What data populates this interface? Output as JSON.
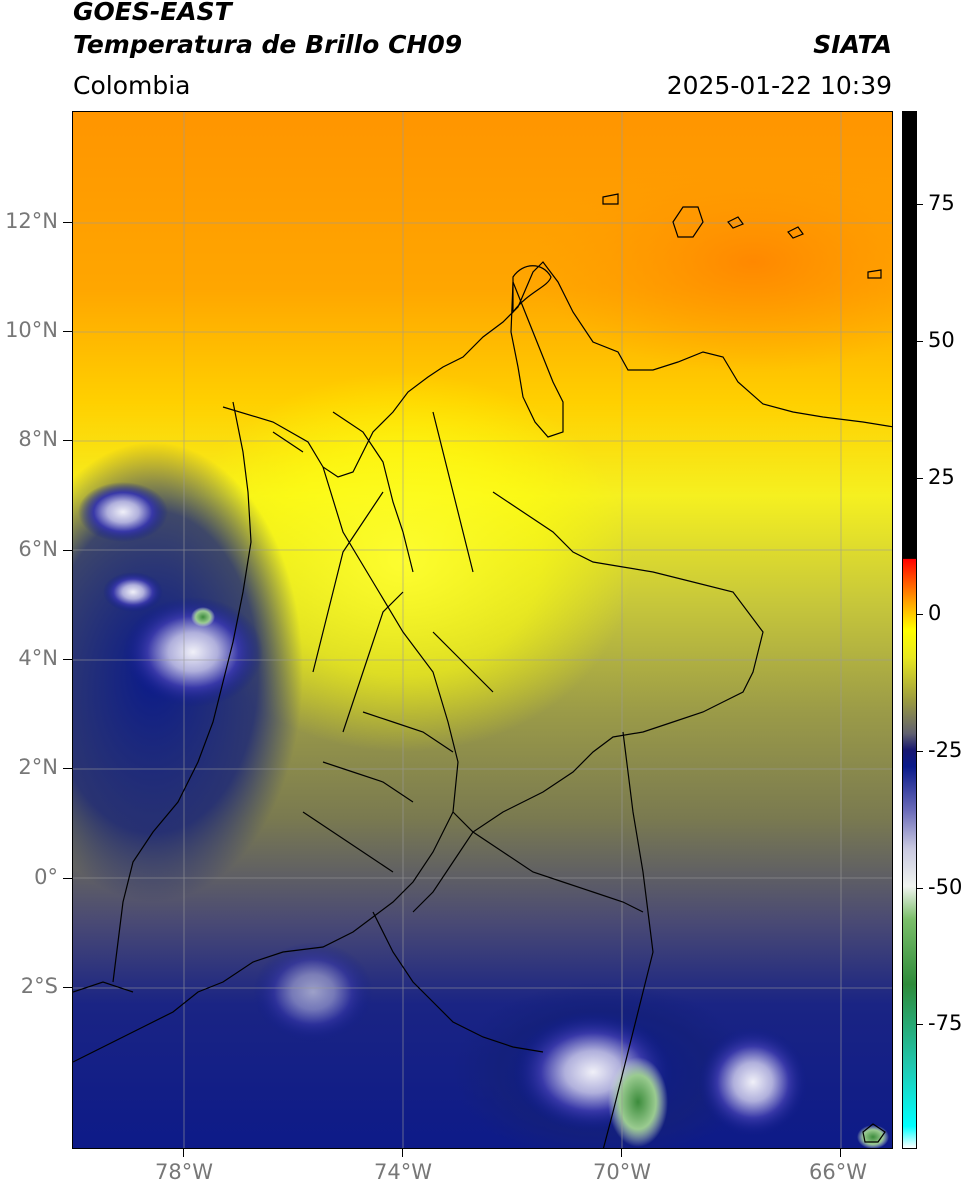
{
  "header": {
    "title_line1": "GOES-EAST",
    "title_line2": "Temperatura de Brillo CH09",
    "region": "Colombia",
    "organization": "SIATA",
    "timestamp": "2025-01-22 10:39"
  },
  "map": {
    "lat_labels": [
      "12°N",
      "10°N",
      "8°N",
      "6°N",
      "4°N",
      "2°N",
      "0°",
      "2°S"
    ],
    "lon_labels": [
      "78°W",
      "74°W",
      "70°W",
      "66°W"
    ],
    "lat_range": [
      -4.9,
      14.0
    ],
    "lon_range": [
      -80.0,
      -65.0
    ],
    "grid": true,
    "colors": {
      "hot": "#ff8c00",
      "warm_yellow": "#ffff00",
      "olive": "#7f7f3f",
      "grey_blue": "#50507a",
      "navy": "#0b1f86",
      "cold_white": "#e6e6f0",
      "green": "#3c8c3c",
      "cyan": "#2ce6e6"
    }
  },
  "colorbar": {
    "tick_labels": [
      "75",
      "50",
      "25",
      "0",
      "-25",
      "-50",
      "-75"
    ],
    "tick_values": [
      75,
      50,
      25,
      0,
      -25,
      -50,
      -75
    ],
    "range": [
      -100,
      90
    ],
    "stops": [
      {
        "value": -100,
        "color": "#ffffff"
      },
      {
        "value": -96,
        "color": "#00ffff"
      },
      {
        "value": -85,
        "color": "#20c8b0"
      },
      {
        "value": -70,
        "color": "#2e8b3a"
      },
      {
        "value": -58,
        "color": "#7bbf6a"
      },
      {
        "value": -52,
        "color": "#f0f4f0"
      },
      {
        "value": -45,
        "color": "#c8c8e0"
      },
      {
        "value": -38,
        "color": "#6a6ab8"
      },
      {
        "value": -30,
        "color": "#0a1a8a"
      },
      {
        "value": -27,
        "color": "#181870"
      },
      {
        "value": -24,
        "color": "#606070"
      },
      {
        "value": -18,
        "color": "#9a9a40"
      },
      {
        "value": -10,
        "color": "#e8e820"
      },
      {
        "value": -5,
        "color": "#ffff00"
      },
      {
        "value": 0,
        "color": "#ffa500"
      },
      {
        "value": 5,
        "color": "#ff4000"
      },
      {
        "value": 8,
        "color": "#ff0000"
      },
      {
        "value": 8.1,
        "color": "#000000"
      },
      {
        "value": 90,
        "color": "#000000"
      }
    ]
  }
}
